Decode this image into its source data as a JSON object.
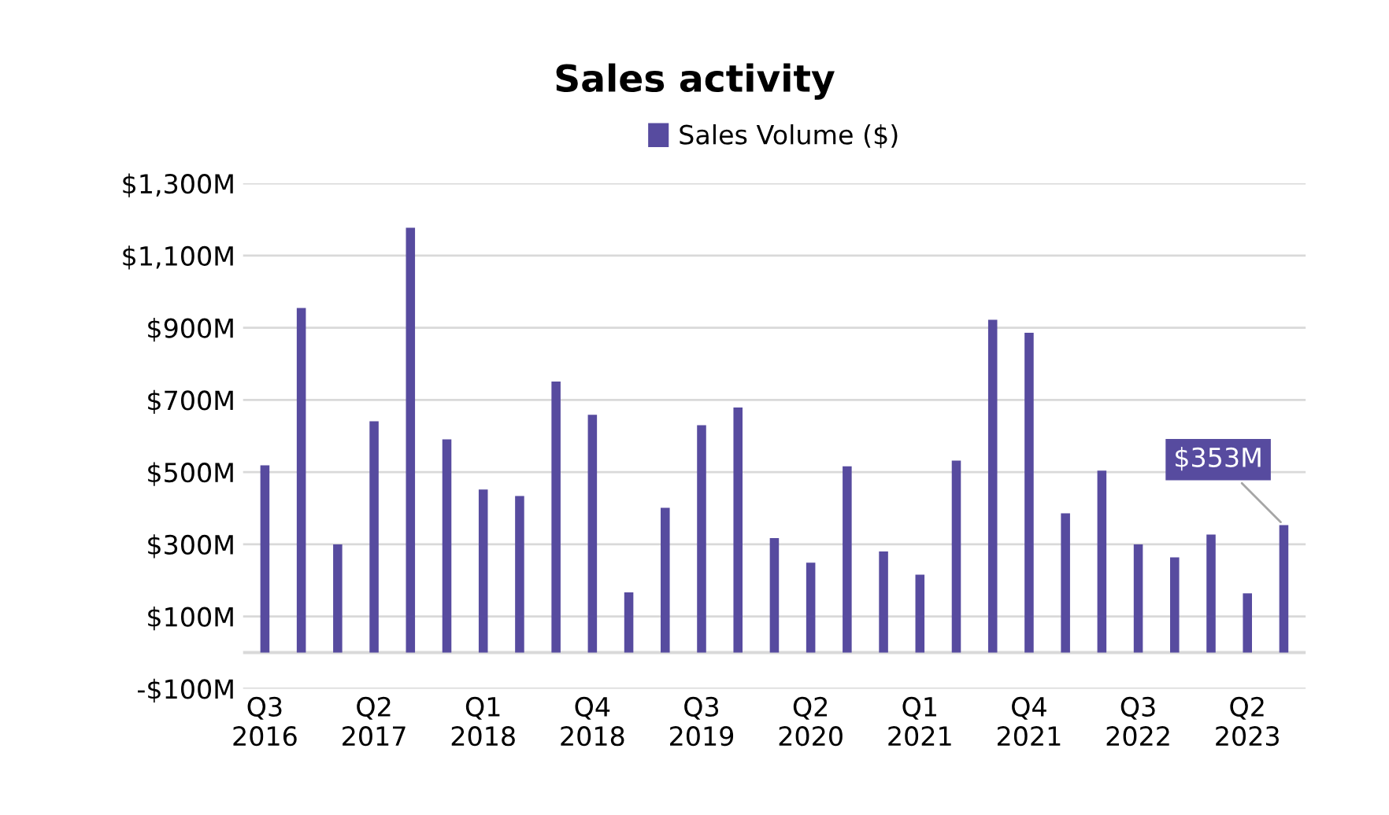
{
  "chart_data": {
    "type": "bar",
    "title": "Sales activity",
    "categories": [
      "Q3\n2016",
      null,
      null,
      "Q2\n2017",
      null,
      null,
      "Q1\n2018",
      null,
      null,
      "Q4\n2018",
      null,
      null,
      "Q3\n2019",
      null,
      null,
      "Q2\n2020",
      null,
      null,
      "Q1\n2021",
      null,
      null,
      "Q4\n2021",
      null,
      null,
      "Q3\n2022",
      null,
      null,
      "Q2\n2023",
      null
    ],
    "series": [
      {
        "name": "Sales Volume ($)",
        "color": "#574b9f",
        "values": [
          519,
          955,
          300,
          641,
          1177,
          591,
          452,
          434,
          751,
          659,
          167,
          401,
          630,
          679,
          317,
          249,
          516,
          280,
          216,
          532,
          922,
          886,
          386,
          504,
          300,
          264,
          327,
          164,
          353
        ],
        "value_labels": [
          null,
          null,
          null,
          null,
          null,
          null,
          null,
          null,
          null,
          null,
          null,
          null,
          null,
          null,
          null,
          null,
          null,
          null,
          null,
          null,
          null,
          null,
          null,
          null,
          null,
          null,
          null,
          null,
          "$353M"
        ]
      }
    ],
    "ylim": [
      -100,
      1300
    ],
    "yticks": [
      {
        "value": -100,
        "label": "-$100M"
      },
      {
        "value": 100,
        "label": "$100M"
      },
      {
        "value": 300,
        "label": "$300M"
      },
      {
        "value": 500,
        "label": "$500M"
      },
      {
        "value": 700,
        "label": "$700M"
      },
      {
        "value": 900,
        "label": "$900M"
      },
      {
        "value": 1100,
        "label": "$1,100M"
      },
      {
        "value": 1300,
        "label": "$1,300M"
      }
    ],
    "grid": "y",
    "legend": "top"
  }
}
